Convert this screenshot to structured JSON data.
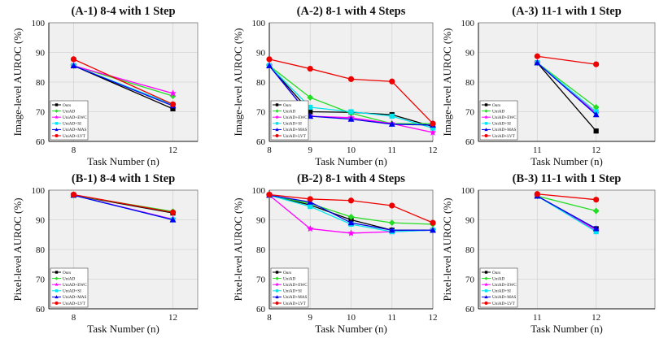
{
  "colors": {
    "plot_bg": "#f0f0f0",
    "grid": "#d4d4d4"
  },
  "legend": [
    {
      "name": "Ours",
      "color": "#000000",
      "marker": "square"
    },
    {
      "name": "UniAD",
      "color": "#22dd22",
      "marker": "diamond"
    },
    {
      "name": "UniAD+EWC",
      "color": "#ff00ff",
      "marker": "star"
    },
    {
      "name": "UniAD+SI",
      "color": "#00e5ee",
      "marker": "square"
    },
    {
      "name": "UniAD+MAS",
      "color": "#0000ee",
      "marker": "triangle"
    },
    {
      "name": "UniAD+LVT",
      "color": "#ee0000",
      "marker": "circle"
    }
  ],
  "chart_data": [
    {
      "type": "line",
      "title": "(A-1) 8-4 with 1 Step",
      "xlabel": "Task Number (n)",
      "ylabel": "Image-level AUROC (%)",
      "x": [
        8,
        12
      ],
      "xlim": [
        7,
        13
      ],
      "ylim": [
        60,
        100
      ],
      "yticks": [
        60,
        70,
        80,
        90,
        100
      ],
      "grid": true,
      "legend_position": "bottom-left",
      "series": [
        {
          "name": "Ours",
          "values": [
            85.5,
            71.0
          ]
        },
        {
          "name": "UniAD",
          "values": [
            85.5,
            75.3
          ]
        },
        {
          "name": "UniAD+EWC",
          "values": [
            85.5,
            76.2
          ]
        },
        {
          "name": "UniAD+SI",
          "values": [
            85.5,
            72.4
          ]
        },
        {
          "name": "UniAD+MAS",
          "values": [
            85.5,
            72.0
          ]
        },
        {
          "name": "UniAD+LVT",
          "values": [
            87.7,
            72.5
          ]
        }
      ]
    },
    {
      "type": "line",
      "title": "(A-2) 8-1 with 4 Steps",
      "xlabel": "Task Number (n)",
      "ylabel": "Image-level AUROC (%)",
      "x": [
        8,
        9,
        10,
        11,
        12
      ],
      "xlim": [
        8,
        12
      ],
      "ylim": [
        60,
        100
      ],
      "yticks": [
        60,
        70,
        80,
        90,
        100
      ],
      "grid": true,
      "legend_position": "bottom-left",
      "series": [
        {
          "name": "Ours",
          "values": [
            85.5,
            70.0,
            69.8,
            69.0,
            65.0
          ]
        },
        {
          "name": "UniAD",
          "values": [
            85.5,
            74.8,
            69.5,
            66.0,
            66.0
          ]
        },
        {
          "name": "UniAD+EWC",
          "values": [
            85.5,
            68.5,
            68.0,
            66.0,
            63.0
          ]
        },
        {
          "name": "UniAD+SI",
          "values": [
            85.5,
            71.5,
            70.0,
            68.5,
            64.5
          ]
        },
        {
          "name": "UniAD+MAS",
          "values": [
            85.5,
            68.5,
            67.5,
            65.8,
            65.5
          ]
        },
        {
          "name": "UniAD+LVT",
          "values": [
            87.7,
            84.5,
            81.0,
            80.2,
            66.0
          ]
        }
      ]
    },
    {
      "type": "line",
      "title": "(A-3) 11-1 with 1 Step",
      "xlabel": "Task Number (n)",
      "ylabel": "Image-level AUROC (%)",
      "x": [
        11,
        12
      ],
      "xlim": [
        10,
        13
      ],
      "ylim": [
        60,
        100
      ],
      "yticks": [
        60,
        70,
        80,
        90,
        100
      ],
      "grid": true,
      "legend_position": "bottom-left",
      "series": [
        {
          "name": "Ours",
          "values": [
            86.5,
            63.5
          ]
        },
        {
          "name": "UniAD",
          "values": [
            86.5,
            71.5
          ]
        },
        {
          "name": "UniAD+EWC",
          "values": [
            86.5,
            69.5
          ]
        },
        {
          "name": "UniAD+SI",
          "values": [
            86.5,
            70.0
          ]
        },
        {
          "name": "UniAD+MAS",
          "values": [
            86.5,
            69.0
          ]
        },
        {
          "name": "UniAD+LVT",
          "values": [
            88.7,
            86.0
          ]
        }
      ]
    },
    {
      "type": "line",
      "title": "(B-1) 8-4 with 1 Step",
      "xlabel": "Task Number (n)",
      "ylabel": "Pixel-level AUROC (%)",
      "x": [
        8,
        12
      ],
      "xlim": [
        7,
        13
      ],
      "ylim": [
        60,
        100
      ],
      "yticks": [
        60,
        70,
        80,
        90,
        100
      ],
      "grid": true,
      "legend_position": "bottom-left",
      "series": [
        {
          "name": "Ours",
          "values": [
            98.3,
            92.3
          ]
        },
        {
          "name": "UniAD",
          "values": [
            98.3,
            92.8
          ]
        },
        {
          "name": "UniAD+EWC",
          "values": [
            98.3,
            90.2
          ]
        },
        {
          "name": "UniAD+SI",
          "values": [
            98.3,
            90.0
          ]
        },
        {
          "name": "UniAD+MAS",
          "values": [
            98.3,
            90.0
          ]
        },
        {
          "name": "UniAD+LVT",
          "values": [
            98.5,
            92.5
          ]
        }
      ]
    },
    {
      "type": "line",
      "title": "(B-2) 8-1 with 4 Steps",
      "xlabel": "Task Number (n)",
      "ylabel": "Pixel-level AUROC (%)",
      "x": [
        8,
        9,
        10,
        11,
        12
      ],
      "xlim": [
        8,
        12
      ],
      "ylim": [
        60,
        100
      ],
      "yticks": [
        60,
        70,
        80,
        90,
        100
      ],
      "grid": true,
      "legend_position": "bottom-left",
      "series": [
        {
          "name": "Ours",
          "values": [
            98.3,
            95.0,
            90.0,
            86.5,
            86.5
          ]
        },
        {
          "name": "UniAD",
          "values": [
            98.3,
            95.5,
            91.0,
            89.0,
            88.5
          ]
        },
        {
          "name": "UniAD+EWC",
          "values": [
            98.3,
            87.0,
            85.5,
            86.0,
            86.5
          ]
        },
        {
          "name": "UniAD+SI",
          "values": [
            98.3,
            94.5,
            88.5,
            86.0,
            86.5
          ]
        },
        {
          "name": "UniAD+MAS",
          "values": [
            98.3,
            96.0,
            89.0,
            86.5,
            86.5
          ]
        },
        {
          "name": "UniAD+LVT",
          "values": [
            98.5,
            97.0,
            96.5,
            94.8,
            89.0
          ]
        }
      ]
    },
    {
      "type": "line",
      "title": "(B-3) 11-1 with 1 Step",
      "xlabel": "Task Number (n)",
      "ylabel": "Pixel-level AUROC (%)",
      "x": [
        11,
        12
      ],
      "xlim": [
        10,
        13
      ],
      "ylim": [
        60,
        100
      ],
      "yticks": [
        60,
        70,
        80,
        90,
        100
      ],
      "grid": true,
      "legend_position": "bottom-left",
      "series": [
        {
          "name": "Ours",
          "values": [
            98.0,
            87.0
          ]
        },
        {
          "name": "UniAD",
          "values": [
            98.0,
            93.0
          ]
        },
        {
          "name": "UniAD+EWC",
          "values": [
            98.0,
            86.5
          ]
        },
        {
          "name": "UniAD+SI",
          "values": [
            98.0,
            86.0
          ]
        },
        {
          "name": "UniAD+MAS",
          "values": [
            98.0,
            87.0
          ]
        },
        {
          "name": "UniAD+LVT",
          "values": [
            98.7,
            96.8
          ]
        }
      ]
    }
  ]
}
